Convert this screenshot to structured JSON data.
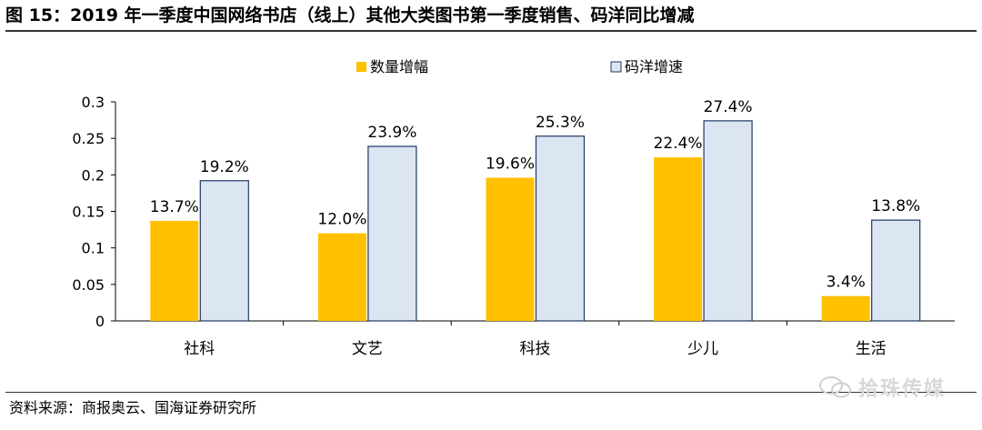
{
  "title": "图 15：2019 年一季度中国网络书店（线上）其他大类图书第一季度销售、码洋同比增减",
  "source": "资料来源：商报奥云、国海证券研究所",
  "watermark": "拾珠传媒",
  "colors": {
    "series1": "#FFC000",
    "series2": "#DCE6F2",
    "series2_stroke": "#1F3864"
  },
  "chart_data": {
    "type": "bar",
    "categories": [
      "社科",
      "文艺",
      "科技",
      "少儿",
      "生活"
    ],
    "series": [
      {
        "name": "数量增幅",
        "values": [
          0.137,
          0.12,
          0.196,
          0.224,
          0.034
        ],
        "labels": [
          "13.7%",
          "12.0%",
          "19.6%",
          "22.4%",
          "3.4%"
        ]
      },
      {
        "name": "码洋增速",
        "values": [
          0.192,
          0.239,
          0.253,
          0.274,
          0.138
        ],
        "labels": [
          "19.2%",
          "23.9%",
          "25.3%",
          "27.4%",
          "13.8%"
        ]
      }
    ],
    "yticks": [
      "0",
      "0.05",
      "0.1",
      "0.15",
      "0.2",
      "0.25",
      "0.3"
    ],
    "ylim": [
      0,
      0.3
    ],
    "legend_position": "top-center",
    "grid": false
  }
}
